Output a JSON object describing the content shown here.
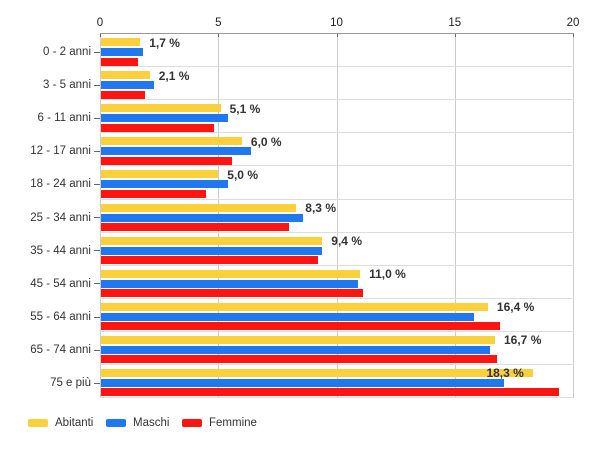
{
  "chart_data": {
    "type": "bar",
    "orientation": "horizontal",
    "title": "",
    "categories": [
      "0 - 2 anni",
      "3 - 5 anni",
      "6 - 11 anni",
      "12 - 17 anni",
      "18 - 24 anni",
      "25 - 34 anni",
      "35 - 44 anni",
      "45 - 54 anni",
      "55 - 64 anni",
      "65 - 74 anni",
      "75 e più"
    ],
    "series": [
      {
        "name": "Abitanti",
        "color": "#FAD13D",
        "values": [
          1.7,
          2.1,
          5.1,
          6.0,
          5.0,
          8.3,
          9.4,
          11.0,
          16.4,
          16.7,
          18.3
        ]
      },
      {
        "name": "Maschi",
        "color": "#1F78F0",
        "values": [
          1.8,
          2.3,
          5.4,
          6.4,
          5.4,
          8.6,
          9.4,
          10.9,
          15.8,
          16.5,
          17.1
        ]
      },
      {
        "name": "Femmine",
        "color": "#FE1511",
        "values": [
          1.6,
          1.9,
          4.8,
          5.6,
          4.5,
          8.0,
          9.2,
          11.1,
          16.9,
          16.8,
          19.4
        ]
      }
    ],
    "value_labels": [
      "1,7 %",
      "2,1 %",
      "5,1 %",
      "6,0 %",
      "5,0 %",
      "8,3 %",
      "9,4 %",
      "11,0 %",
      "16,4 %",
      "16,7 %",
      "18,3 %"
    ],
    "x_ticks": [
      "0",
      "5",
      "10",
      "15",
      "20"
    ],
    "xlim": [
      0,
      20
    ],
    "grid": true,
    "legend_position": "bottom"
  },
  "colors": {
    "background": "#FFFFFF",
    "grid_vertical": "#CCCCCC",
    "row_separator": "#DDDDDD",
    "axis_line": "#999999",
    "tick_mark": "#666666",
    "axis_text": "#222222",
    "label_text": "#333333",
    "value_text": "#333333"
  }
}
